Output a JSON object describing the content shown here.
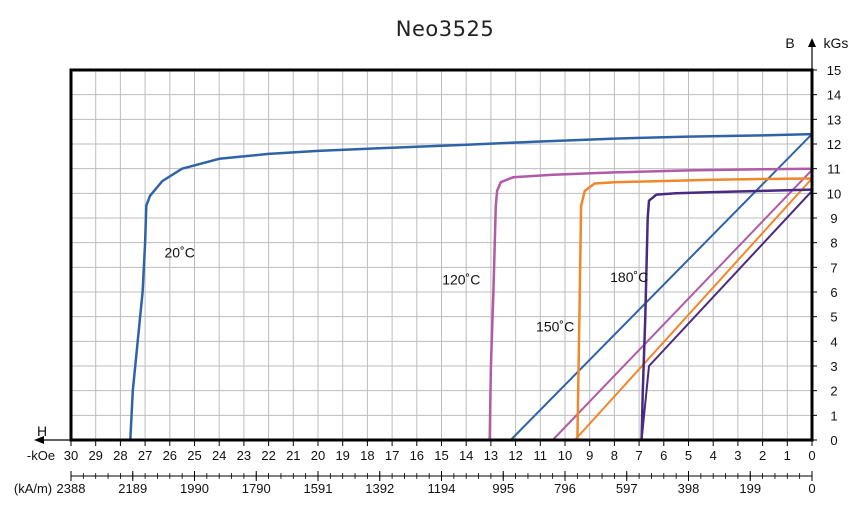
{
  "chart_data": {
    "type": "line",
    "title": "Neo3525",
    "y_axis": {
      "letter": "B",
      "unit": "kGs",
      "range": [
        0,
        15
      ],
      "ticks": [
        "0",
        "1",
        "2",
        "3",
        "4",
        "5",
        "6",
        "7",
        "8",
        "9",
        "10",
        "11",
        "12",
        "13",
        "14",
        "15"
      ]
    },
    "x_axis": {
      "letter": "H",
      "unit": "-kOe",
      "range": [
        30,
        0
      ],
      "ticks": [
        "30",
        "29",
        "28",
        "27",
        "26",
        "25",
        "24",
        "23",
        "22",
        "21",
        "20",
        "19",
        "18",
        "17",
        "16",
        "15",
        "14",
        "13",
        "12",
        "11",
        "10",
        "9",
        "8",
        "7",
        "6",
        "5",
        "4",
        "3",
        "2",
        "1",
        "0"
      ],
      "secondary": {
        "unit": "(kA/m)",
        "ticks": [
          {
            "v": 30,
            "label": "2388"
          },
          {
            "v": 27.5,
            "label": "2189"
          },
          {
            "v": 25,
            "label": "1990"
          },
          {
            "v": 22.5,
            "label": "1790"
          },
          {
            "v": 20,
            "label": "1591"
          },
          {
            "v": 17.5,
            "label": "1392"
          },
          {
            "v": 15,
            "label": "1194"
          },
          {
            "v": 12.5,
            "label": "995"
          },
          {
            "v": 10,
            "label": "796"
          },
          {
            "v": 7.5,
            "label": "597"
          },
          {
            "v": 5,
            "label": "398"
          },
          {
            "v": 2.5,
            "label": "199"
          },
          {
            "v": 0,
            "label": "0"
          }
        ]
      }
    },
    "grid": true,
    "series": [
      {
        "name": "20˚C",
        "color": "#2f63a8",
        "label_at": [
          25.6,
          7.4
        ],
        "points": [
          [
            0,
            12.4
          ],
          [
            2,
            12.35
          ],
          [
            5,
            12.3
          ],
          [
            8,
            12.22
          ],
          [
            11,
            12.1
          ],
          [
            14,
            11.97
          ],
          [
            17,
            11.85
          ],
          [
            20,
            11.72
          ],
          [
            22,
            11.6
          ],
          [
            24,
            11.4
          ],
          [
            25.5,
            11.0
          ],
          [
            26.3,
            10.5
          ],
          [
            26.8,
            9.9
          ],
          [
            26.95,
            9.5
          ],
          [
            27.0,
            8.0
          ],
          [
            27.1,
            6.0
          ],
          [
            27.3,
            4.0
          ],
          [
            27.5,
            2.0
          ],
          [
            27.6,
            0
          ]
        ]
      },
      {
        "name": "120˚C",
        "color": "#b05aa8",
        "label_at": [
          14.2,
          6.3
        ],
        "points": [
          [
            0,
            11.0
          ],
          [
            2,
            10.98
          ],
          [
            5,
            10.93
          ],
          [
            8,
            10.85
          ],
          [
            10.5,
            10.75
          ],
          [
            12.1,
            10.65
          ],
          [
            12.6,
            10.45
          ],
          [
            12.75,
            10.1
          ],
          [
            12.8,
            9.5
          ],
          [
            12.9,
            6.0
          ],
          [
            13.0,
            3.0
          ],
          [
            13.05,
            0
          ]
        ]
      },
      {
        "name": "150˚C",
        "color": "#f0872a",
        "label_at": [
          10.4,
          4.4
        ],
        "points": [
          [
            0,
            10.6
          ],
          [
            2,
            10.58
          ],
          [
            4,
            10.55
          ],
          [
            6,
            10.5
          ],
          [
            8,
            10.45
          ],
          [
            8.8,
            10.4
          ],
          [
            9.2,
            10.1
          ],
          [
            9.35,
            9.5
          ],
          [
            9.4,
            6.0
          ],
          [
            9.45,
            3.0
          ],
          [
            9.5,
            0
          ]
        ]
      },
      {
        "name": "180˚C",
        "color": "#4a2a80",
        "label_at": [
          7.4,
          6.4
        ],
        "points": [
          [
            0,
            10.15
          ],
          [
            2,
            10.1
          ],
          [
            4,
            10.05
          ],
          [
            5.5,
            10.0
          ],
          [
            6.3,
            9.95
          ],
          [
            6.6,
            9.7
          ],
          [
            6.65,
            9.0
          ],
          [
            6.75,
            5.0
          ],
          [
            6.85,
            2.0
          ],
          [
            6.9,
            0
          ]
        ]
      }
    ],
    "load_lines": [
      {
        "color": "#2f63a8",
        "points": [
          [
            0,
            12.4
          ],
          [
            12.2,
            0
          ]
        ]
      },
      {
        "color": "#b05aa8",
        "points": [
          [
            0,
            10.95
          ],
          [
            10.5,
            0
          ]
        ]
      },
      {
        "color": "#f0872a",
        "points": [
          [
            0,
            10.6
          ],
          [
            9.6,
            0
          ]
        ]
      },
      {
        "color": "#4a2a80",
        "points": [
          [
            0,
            10.1
          ],
          [
            6.6,
            3.0
          ],
          [
            6.9,
            0
          ]
        ]
      }
    ]
  }
}
